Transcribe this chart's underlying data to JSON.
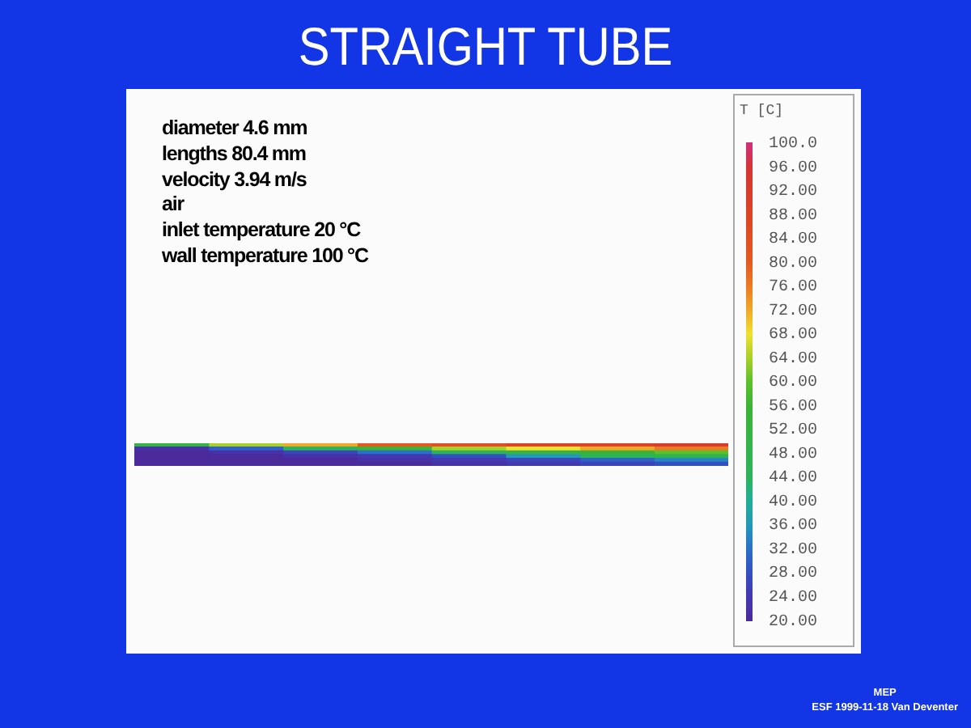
{
  "chart_data": {
    "type": "heatmap",
    "title": "STRAIGHT TUBE",
    "categories": [
      null,
      null,
      null,
      null,
      null,
      null,
      null,
      null
    ],
    "y_categories": [
      null,
      null,
      null,
      null,
      null,
      null
    ],
    "cells": [
      [
        50,
        64,
        72,
        80,
        84,
        88,
        88,
        92
      ],
      [
        22,
        30,
        44,
        56,
        64,
        68,
        72,
        76
      ],
      [
        20,
        22,
        26,
        32,
        44,
        52,
        56,
        60
      ],
      [
        20,
        20,
        22,
        24,
        28,
        36,
        44,
        48
      ],
      [
        20,
        20,
        20,
        22,
        24,
        26,
        30,
        34
      ],
      [
        20,
        20,
        20,
        20,
        22,
        24,
        26,
        28
      ]
    ],
    "clabel": "T [C]",
    "clim": [
      20,
      100
    ],
    "cticks": [
      {
        "value": 20,
        "label": "20.00"
      },
      {
        "value": 24,
        "label": "24.00"
      },
      {
        "value": 28,
        "label": "28.00"
      },
      {
        "value": 32,
        "label": "32.00"
      },
      {
        "value": 36,
        "label": "36.00"
      },
      {
        "value": 40,
        "label": "40.00"
      },
      {
        "value": 44,
        "label": "44.00"
      },
      {
        "value": 48,
        "label": "48.00"
      },
      {
        "value": 52,
        "label": "52.00"
      },
      {
        "value": 56,
        "label": "56.00"
      },
      {
        "value": 60,
        "label": "60.00"
      },
      {
        "value": 64,
        "label": "64.00"
      },
      {
        "value": 68,
        "label": "68.00"
      },
      {
        "value": 72,
        "label": "72.00"
      },
      {
        "value": 76,
        "label": "76.00"
      },
      {
        "value": 80,
        "label": "80.00"
      },
      {
        "value": 84,
        "label": "84.00"
      },
      {
        "value": 88,
        "label": "88.00"
      },
      {
        "value": 92,
        "label": "92.00"
      },
      {
        "value": 96,
        "label": "96.00"
      },
      {
        "value": 100,
        "label": "100.0"
      }
    ],
    "tick_labels": false,
    "annotations": [
      "diameter 4.6 mm",
      "lengths 80.4 mm",
      "velocity 3.94 m/s",
      "air",
      "inlet temperature 20 °C",
      "wall temperature 100 °C",
      "MEP",
      "ESF 1999-11-18 Van Deventer"
    ]
  }
}
